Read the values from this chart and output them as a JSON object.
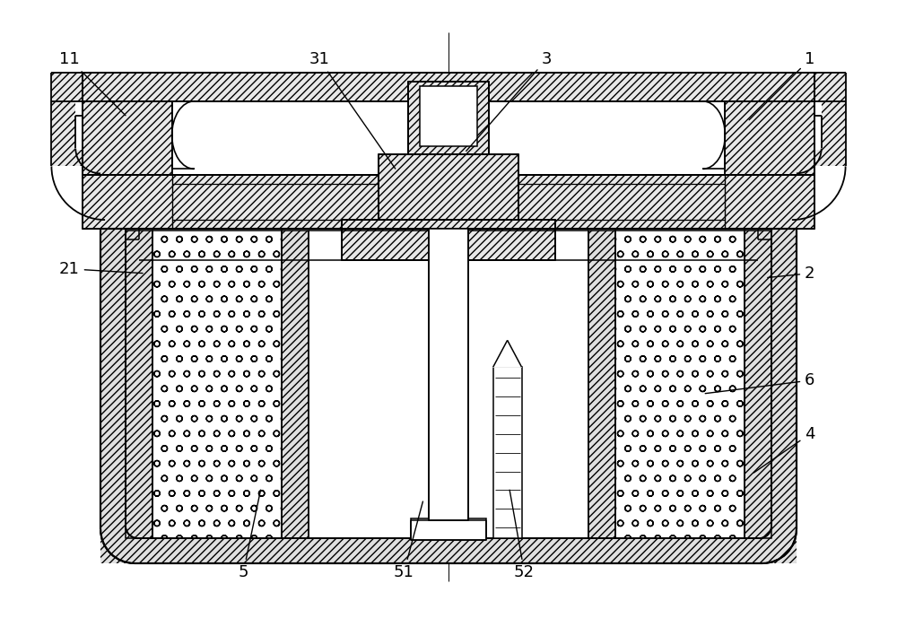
{
  "bg_color": "#ffffff",
  "lc": "#000000",
  "annotations": [
    [
      "1",
      9.05,
      6.35,
      8.35,
      5.65
    ],
    [
      "2",
      9.05,
      3.95,
      8.55,
      3.9
    ],
    [
      "3",
      6.1,
      6.35,
      5.18,
      5.3
    ],
    [
      "4",
      9.05,
      2.15,
      8.4,
      1.7
    ],
    [
      "5",
      2.7,
      0.6,
      2.9,
      1.55
    ],
    [
      "6",
      9.05,
      2.75,
      7.85,
      2.6
    ],
    [
      "11",
      0.75,
      6.35,
      1.4,
      5.7
    ],
    [
      "21",
      0.75,
      4.0,
      1.6,
      3.95
    ],
    [
      "31",
      3.55,
      6.35,
      4.42,
      5.1
    ],
    [
      "51",
      4.5,
      0.6,
      4.72,
      1.42
    ],
    [
      "52",
      5.85,
      0.6,
      5.68,
      1.55
    ]
  ]
}
